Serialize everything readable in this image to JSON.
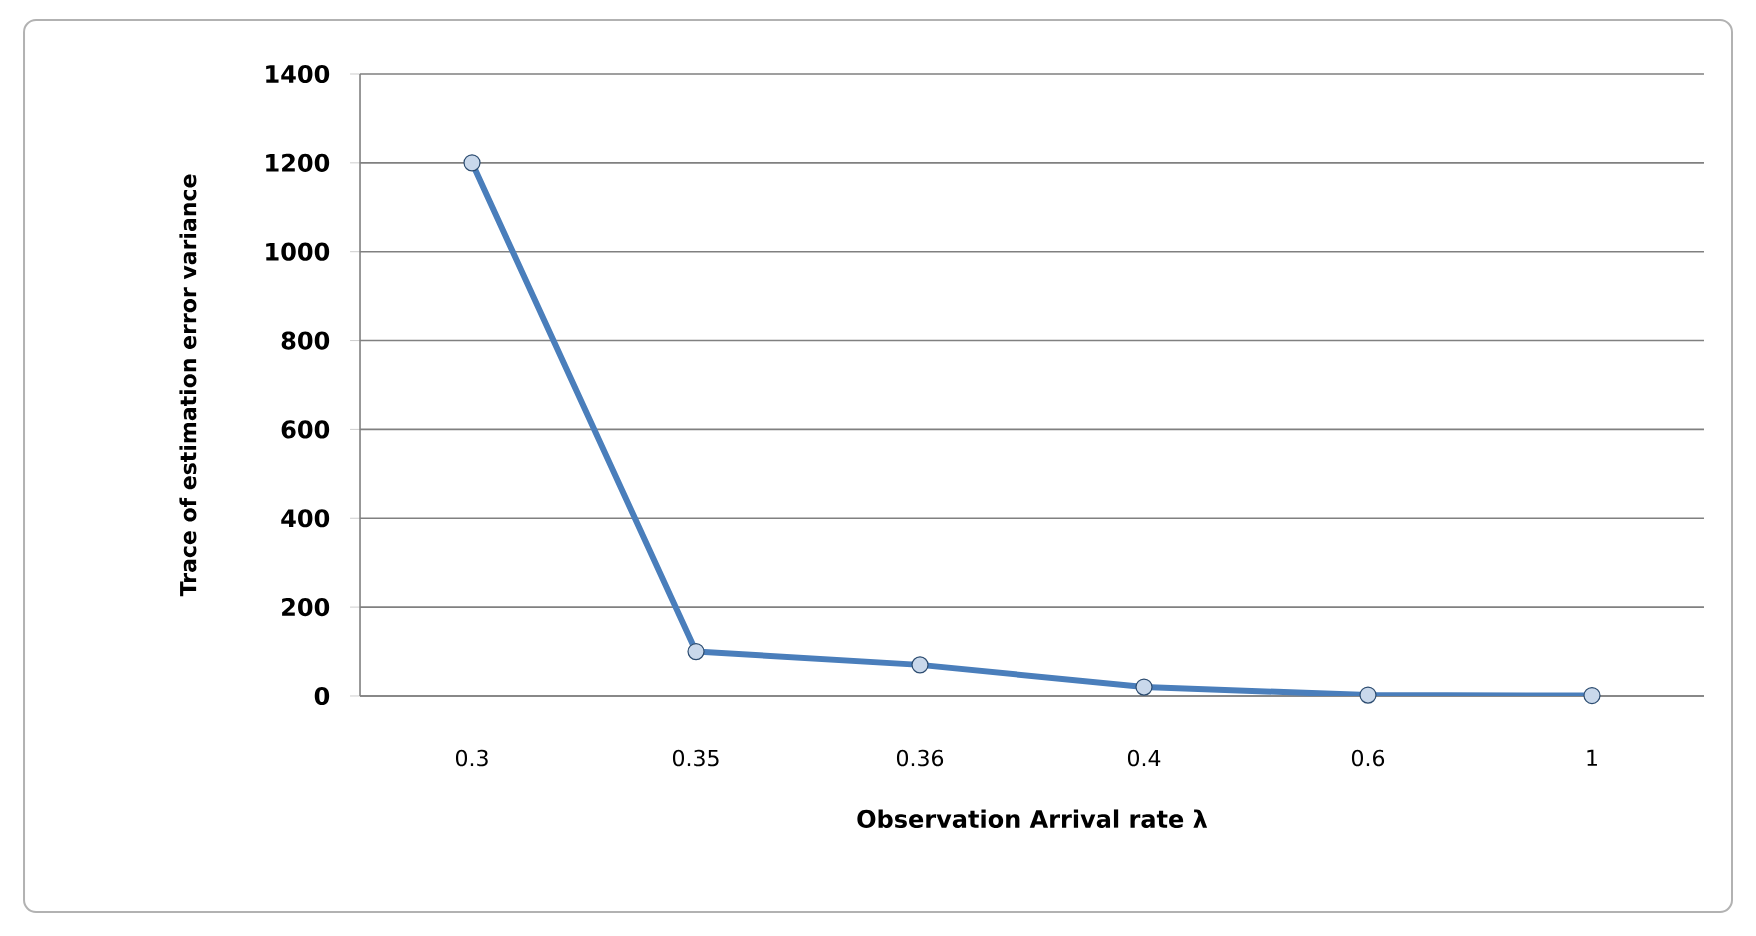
{
  "chart_data": {
    "type": "line",
    "categories": [
      "0.3",
      "0.35",
      "0.36",
      "0.4",
      "0.6",
      "1"
    ],
    "values": [
      1200,
      100,
      70,
      20,
      2,
      1
    ],
    "color": "#4a7ebb",
    "marker": "circle",
    "line_style": "solid",
    "xlabel": "Observation Arrival rate λ",
    "ylabel": "Trace of estimation error variance",
    "ylim": [
      0,
      1400
    ],
    "yticks": [
      0,
      200,
      400,
      600,
      800,
      1000,
      1200,
      1400
    ],
    "grid": "y"
  }
}
